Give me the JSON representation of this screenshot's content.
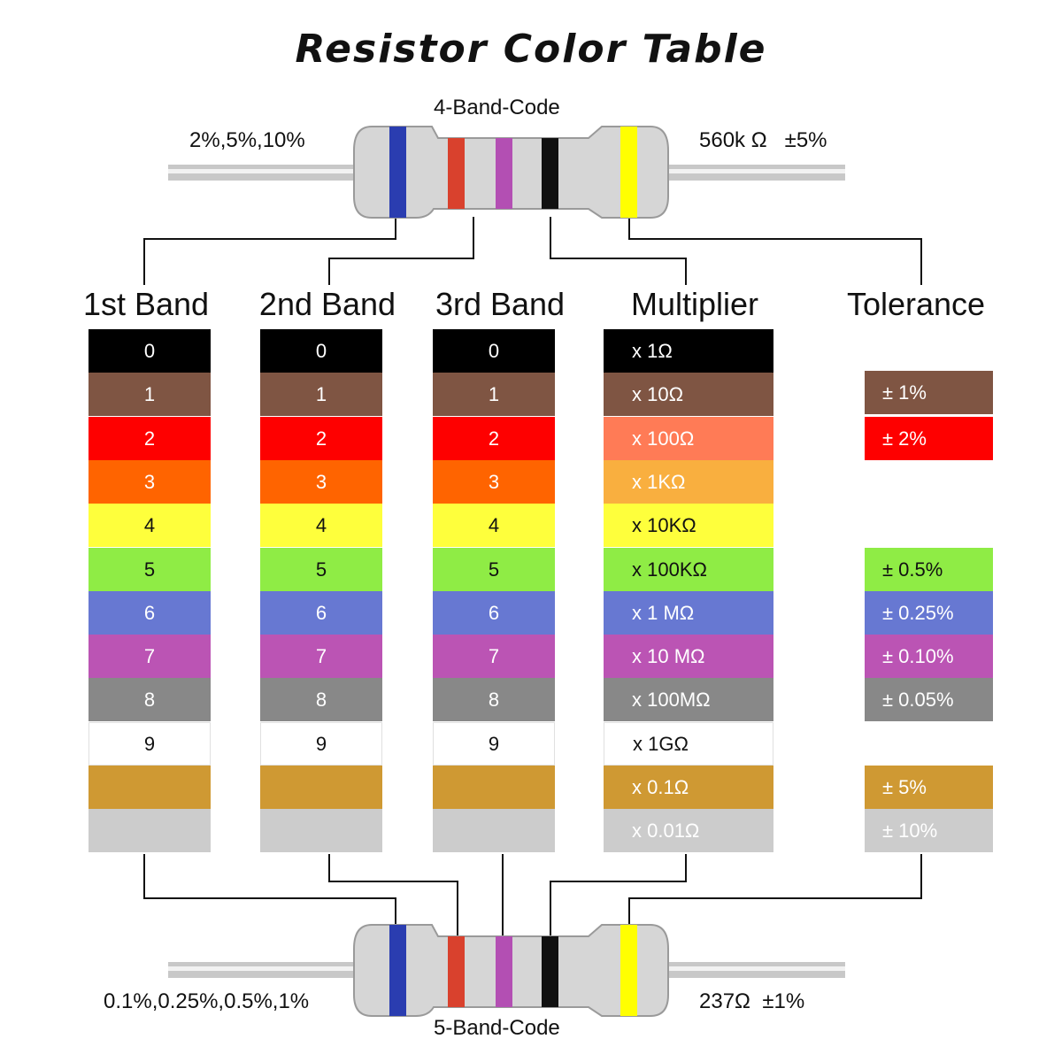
{
  "title": "Resistor Color Table",
  "top_resistor": {
    "code_label": "4-Band-Code",
    "left_label": "2%,5%,10%",
    "right_label": "560k Ω   ±5%"
  },
  "bottom_resistor": {
    "code_label": "5-Band-Code",
    "left_label": "0.1%,0.25%,0.5%,1%",
    "right_label": "237Ω  ±1%"
  },
  "columns": {
    "band1": "1st Band",
    "band2": "2nd Band",
    "band3": "3rd Band",
    "multiplier": "Multiplier",
    "tolerance": "Tolerance"
  },
  "colors": {
    "black": "#000000",
    "brown": "#7f5543",
    "red": "#fe0000",
    "orange": "#ff6400",
    "yellow": "#feff3c",
    "green": "#8fec45",
    "blue": "#6778d2",
    "violet": "#bb54b4",
    "grey": "#888888",
    "white": "#ffffff",
    "gold": "#cf9933",
    "silver": "#cccccc",
    "mult_red": "#ff7b56",
    "mult_orange": "#f9af3f",
    "resistor_body": "#d8d8d8",
    "band_blue": "#2a3db0",
    "band_red": "#d9412d",
    "band_violet": "#b34fb3",
    "band_black": "#111111",
    "band_yellow": "#ffff00"
  },
  "digits": [
    "0",
    "1",
    "2",
    "3",
    "4",
    "5",
    "6",
    "7",
    "8",
    "9",
    "",
    ""
  ],
  "multipliers": [
    "x 1Ω",
    "x 10Ω",
    "x 100Ω",
    "x 1KΩ",
    "x 10KΩ",
    "x 100KΩ",
    "x 1 MΩ",
    "x 10 MΩ",
    "x 100MΩ",
    "x 1GΩ",
    "x 0.1Ω",
    "x 0.01Ω"
  ],
  "tolerances": {
    "brown": "± 1%",
    "red": "± 2%",
    "green": "± 0.5%",
    "blue": "± 0.25%",
    "violet": "± 0.10%",
    "grey": "± 0.05%",
    "gold": "± 5%",
    "silver": "± 10%"
  }
}
